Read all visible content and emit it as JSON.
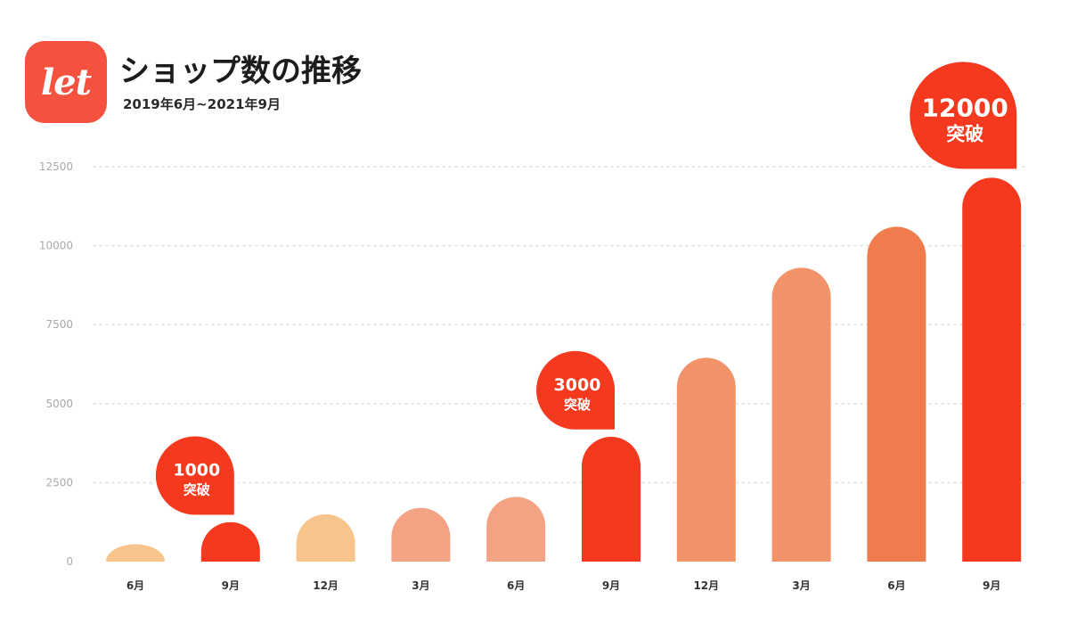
{
  "header": {
    "logo_text": "let",
    "title": "ショップ数の推移",
    "subtitle": "2019年6月~2021年9月"
  },
  "chart_data": {
    "type": "bar",
    "title": "ショップ数の推移",
    "subtitle": "2019年6月~2021年9月",
    "xlabel": "",
    "ylabel": "",
    "categories": [
      "6月",
      "9月",
      "12月",
      "3月",
      "6月",
      "9月",
      "12月",
      "3月",
      "6月",
      "9月"
    ],
    "values": [
      550,
      1250,
      1500,
      1700,
      2050,
      3950,
      6450,
      9300,
      10600,
      12150
    ],
    "bar_colors": [
      "#f7c48c",
      "#f5391f",
      "#f7c48c",
      "#f3a283",
      "#f3a283",
      "#f5391f",
      "#f19268",
      "#f19268",
      "#f07c4e",
      "#f5391f"
    ],
    "yticks": [
      "0",
      "2500",
      "5000",
      "7500",
      "10000",
      "12500"
    ],
    "ylim": [
      0,
      12500
    ],
    "grid": true,
    "annotations": [
      {
        "bar_index": 1,
        "number": "1000",
        "text": "突破"
      },
      {
        "bar_index": 5,
        "number": "3000",
        "text": "突破"
      },
      {
        "bar_index": 9,
        "number": "12000",
        "text": "突破"
      }
    ]
  },
  "colors": {
    "accent": "#f5391f",
    "logo": "#f4523f",
    "grid": "#dddddd"
  }
}
